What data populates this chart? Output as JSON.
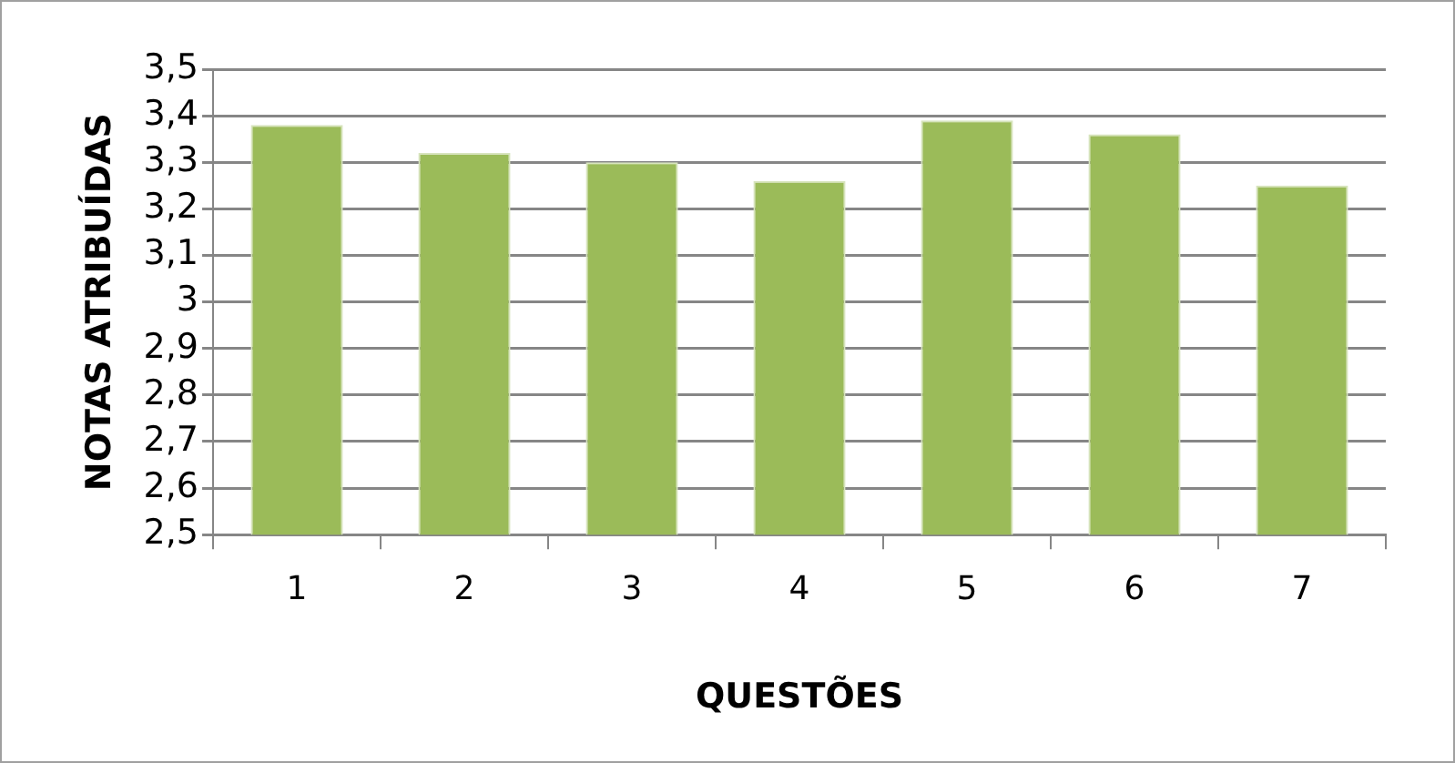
{
  "chart_data": {
    "type": "bar",
    "xlabel": "QUESTÕES",
    "ylabel": "NOTAS ATRIBUÍDAS",
    "categories": [
      "1",
      "2",
      "3",
      "4",
      "5",
      "6",
      "7"
    ],
    "values": [
      3.38,
      3.32,
      3.3,
      3.26,
      3.39,
      3.36,
      3.25
    ],
    "color": "#9bbb59",
    "ylim": [
      2.5,
      3.5
    ],
    "yticks": [
      {
        "value": 2.5,
        "label": "2,5"
      },
      {
        "value": 2.6,
        "label": "2,6"
      },
      {
        "value": 2.7,
        "label": "2,7"
      },
      {
        "value": 2.8,
        "label": "2,8"
      },
      {
        "value": 2.9,
        "label": "2,9"
      },
      {
        "value": 3,
        "label": "3"
      },
      {
        "value": 3.1,
        "label": "3,1"
      },
      {
        "value": 3.2,
        "label": "3,2"
      },
      {
        "value": 3.3,
        "label": "3,3"
      },
      {
        "value": 3.4,
        "label": "3,4"
      },
      {
        "value": 3.5,
        "label": "3,5"
      }
    ],
    "grid": "y",
    "legend": false
  }
}
